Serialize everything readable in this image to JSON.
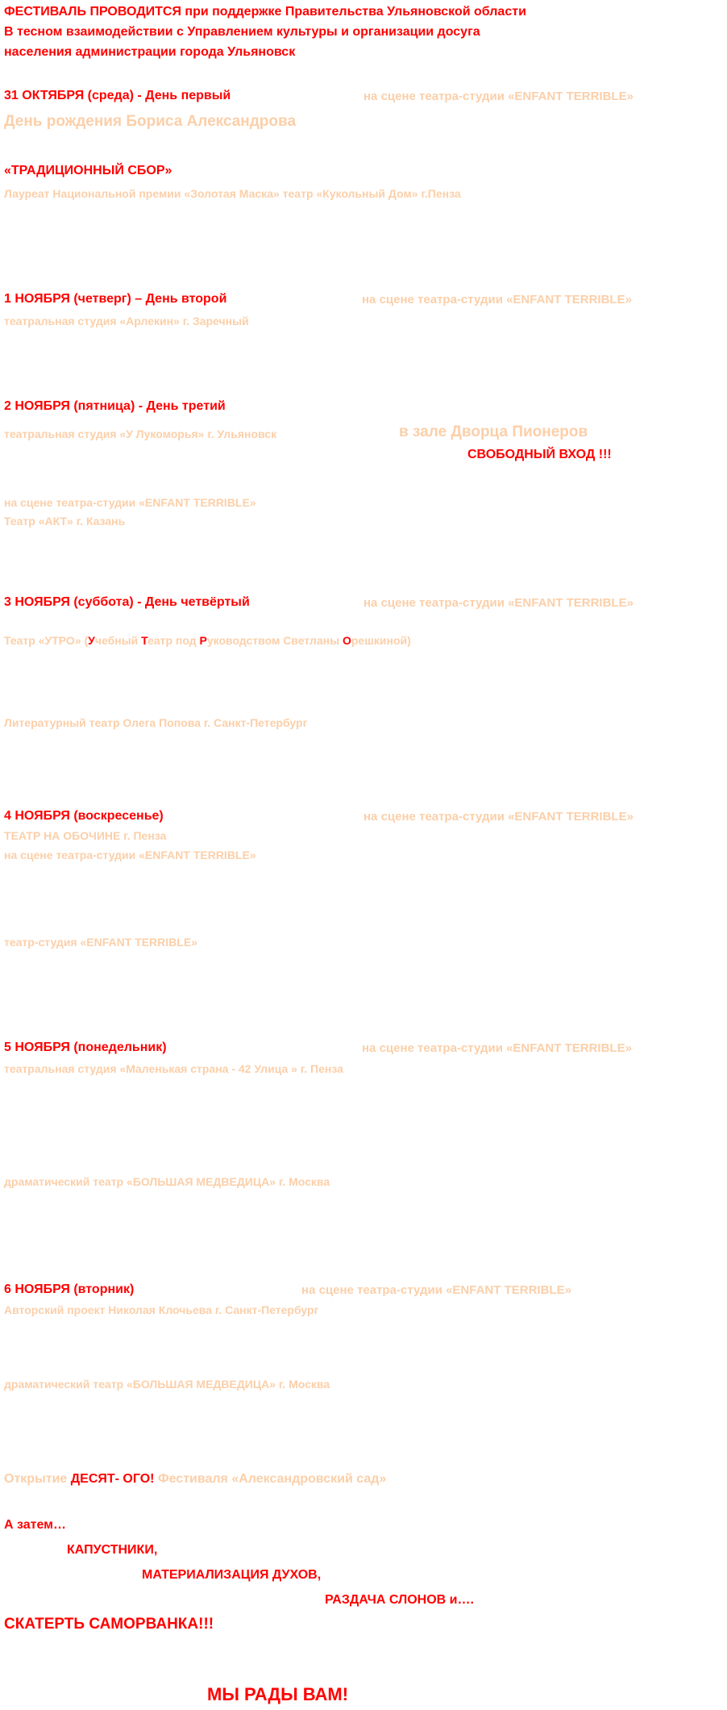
{
  "intro": {
    "line1": "ФЕСТИВАЛЬ ПРОВОДИТСЯ при поддержке Правительства Ульяновской области",
    "line2": "В тесном взаимодействии с Управлением культуры и  организации  досуга",
    "line3": "населения администрации города Ульяновск"
  },
  "day1": {
    "title": "31 ОКТЯБРЯ (среда) - День первый",
    "venue": "на сцене театра-студии  «ENFANT TERRIBLE»",
    "subtitle": "День рождения Бориса  Александрова",
    "program": "«ТРАДИЦИОННЫЙ СБОР»",
    "guest": "Лауреат Национальной премии «Золотая Маска» театр «Кукольный Дом» г.Пенза"
  },
  "day2": {
    "title": "1 НОЯБРЯ (четверг) – День второй",
    "venue": "на сцене театра-студии  «ENFANT TERRIBLE»",
    "guest": "театральная студия «Арлекин»  г. Заречный"
  },
  "day3": {
    "title": "2 НОЯБРЯ (пятница) - День третий",
    "guest1": "театральная студия «У Лукоморья» г. Ульяновск",
    "hall": "в  зале Дворца Пионеров",
    "free": "СВОБОДНЫЙ ВХОД !!!",
    "venue2": "на сцене театра-студии  «ENFANT TERRIBLE»",
    "guest2": "Театр «АКТ» г. Казань"
  },
  "day4": {
    "title": "3 НОЯБРЯ (суббота) - День четвёртый",
    "venue": "на сцене театра-студии  «ENFANT TERRIBLE»",
    "guest1_pre": "Театр «УТРО» (",
    "guest1_l1": "У",
    "guest1_w1": "чебный ",
    "guest1_l2": "Т",
    "guest1_w2": "еатр под ",
    "guest1_l3": "Р",
    "guest1_w3": "уководством Светланы ",
    "guest1_l4": "О",
    "guest1_w4": "решкиной)",
    "guest2": "Литературный театр Олега Попова  г. Санкт-Петербург"
  },
  "day5": {
    "title": "4 НОЯБРЯ (воскресенье)",
    "venue": "на сцене театра-студии  «ENFANT TERRIBLE»",
    "guest1": "ТЕАТР НА ОБОЧИНЕ  г. Пенза",
    "venue2": "на сцене театра-студии  «ENFANT TERRIBLE»",
    "guest2": "театр-студия  «ENFANT TERRIBLE»"
  },
  "day6": {
    "title": "5 НОЯБРЯ (понедельник)",
    "venue": "на сцене театра-студии  «ENFANT TERRIBLE»",
    "guest1": "театральная студия «Маленькая страна - 42 Улица » г. Пенза",
    "guest2": "драматический театр «БОЛЬШАЯ МЕДВЕДИЦА» г. Москва"
  },
  "day7": {
    "title": "6 НОЯБРЯ (вторник)",
    "venue": "на сцене театра-студии  «ENFANT TERRIBLE»",
    "guest1": "Авторский проект Николая Клочьева   г. Санкт-Петербург",
    "guest2": "драматический театр «БОЛЬШАЯ МЕДВЕДИЦА» г. Москва"
  },
  "opening": {
    "pre": "Открытие ",
    "mid": "ДЕСЯТ- ОГО!",
    "post": " Фестиваля «Александровский сад»"
  },
  "finale": {
    "line1": "А затем…",
    "line2": "КАПУСТНИКИ,",
    "line3": "МАТЕРИАЛИЗАЦИЯ ДУХОВ,",
    "line4": "РАЗДАЧА СЛОНОВ и….",
    "line5": "СКАТЕРТЬ САМОРВАНКА!!!",
    "welcome": "МЫ РАДЫ ВАМ!"
  }
}
